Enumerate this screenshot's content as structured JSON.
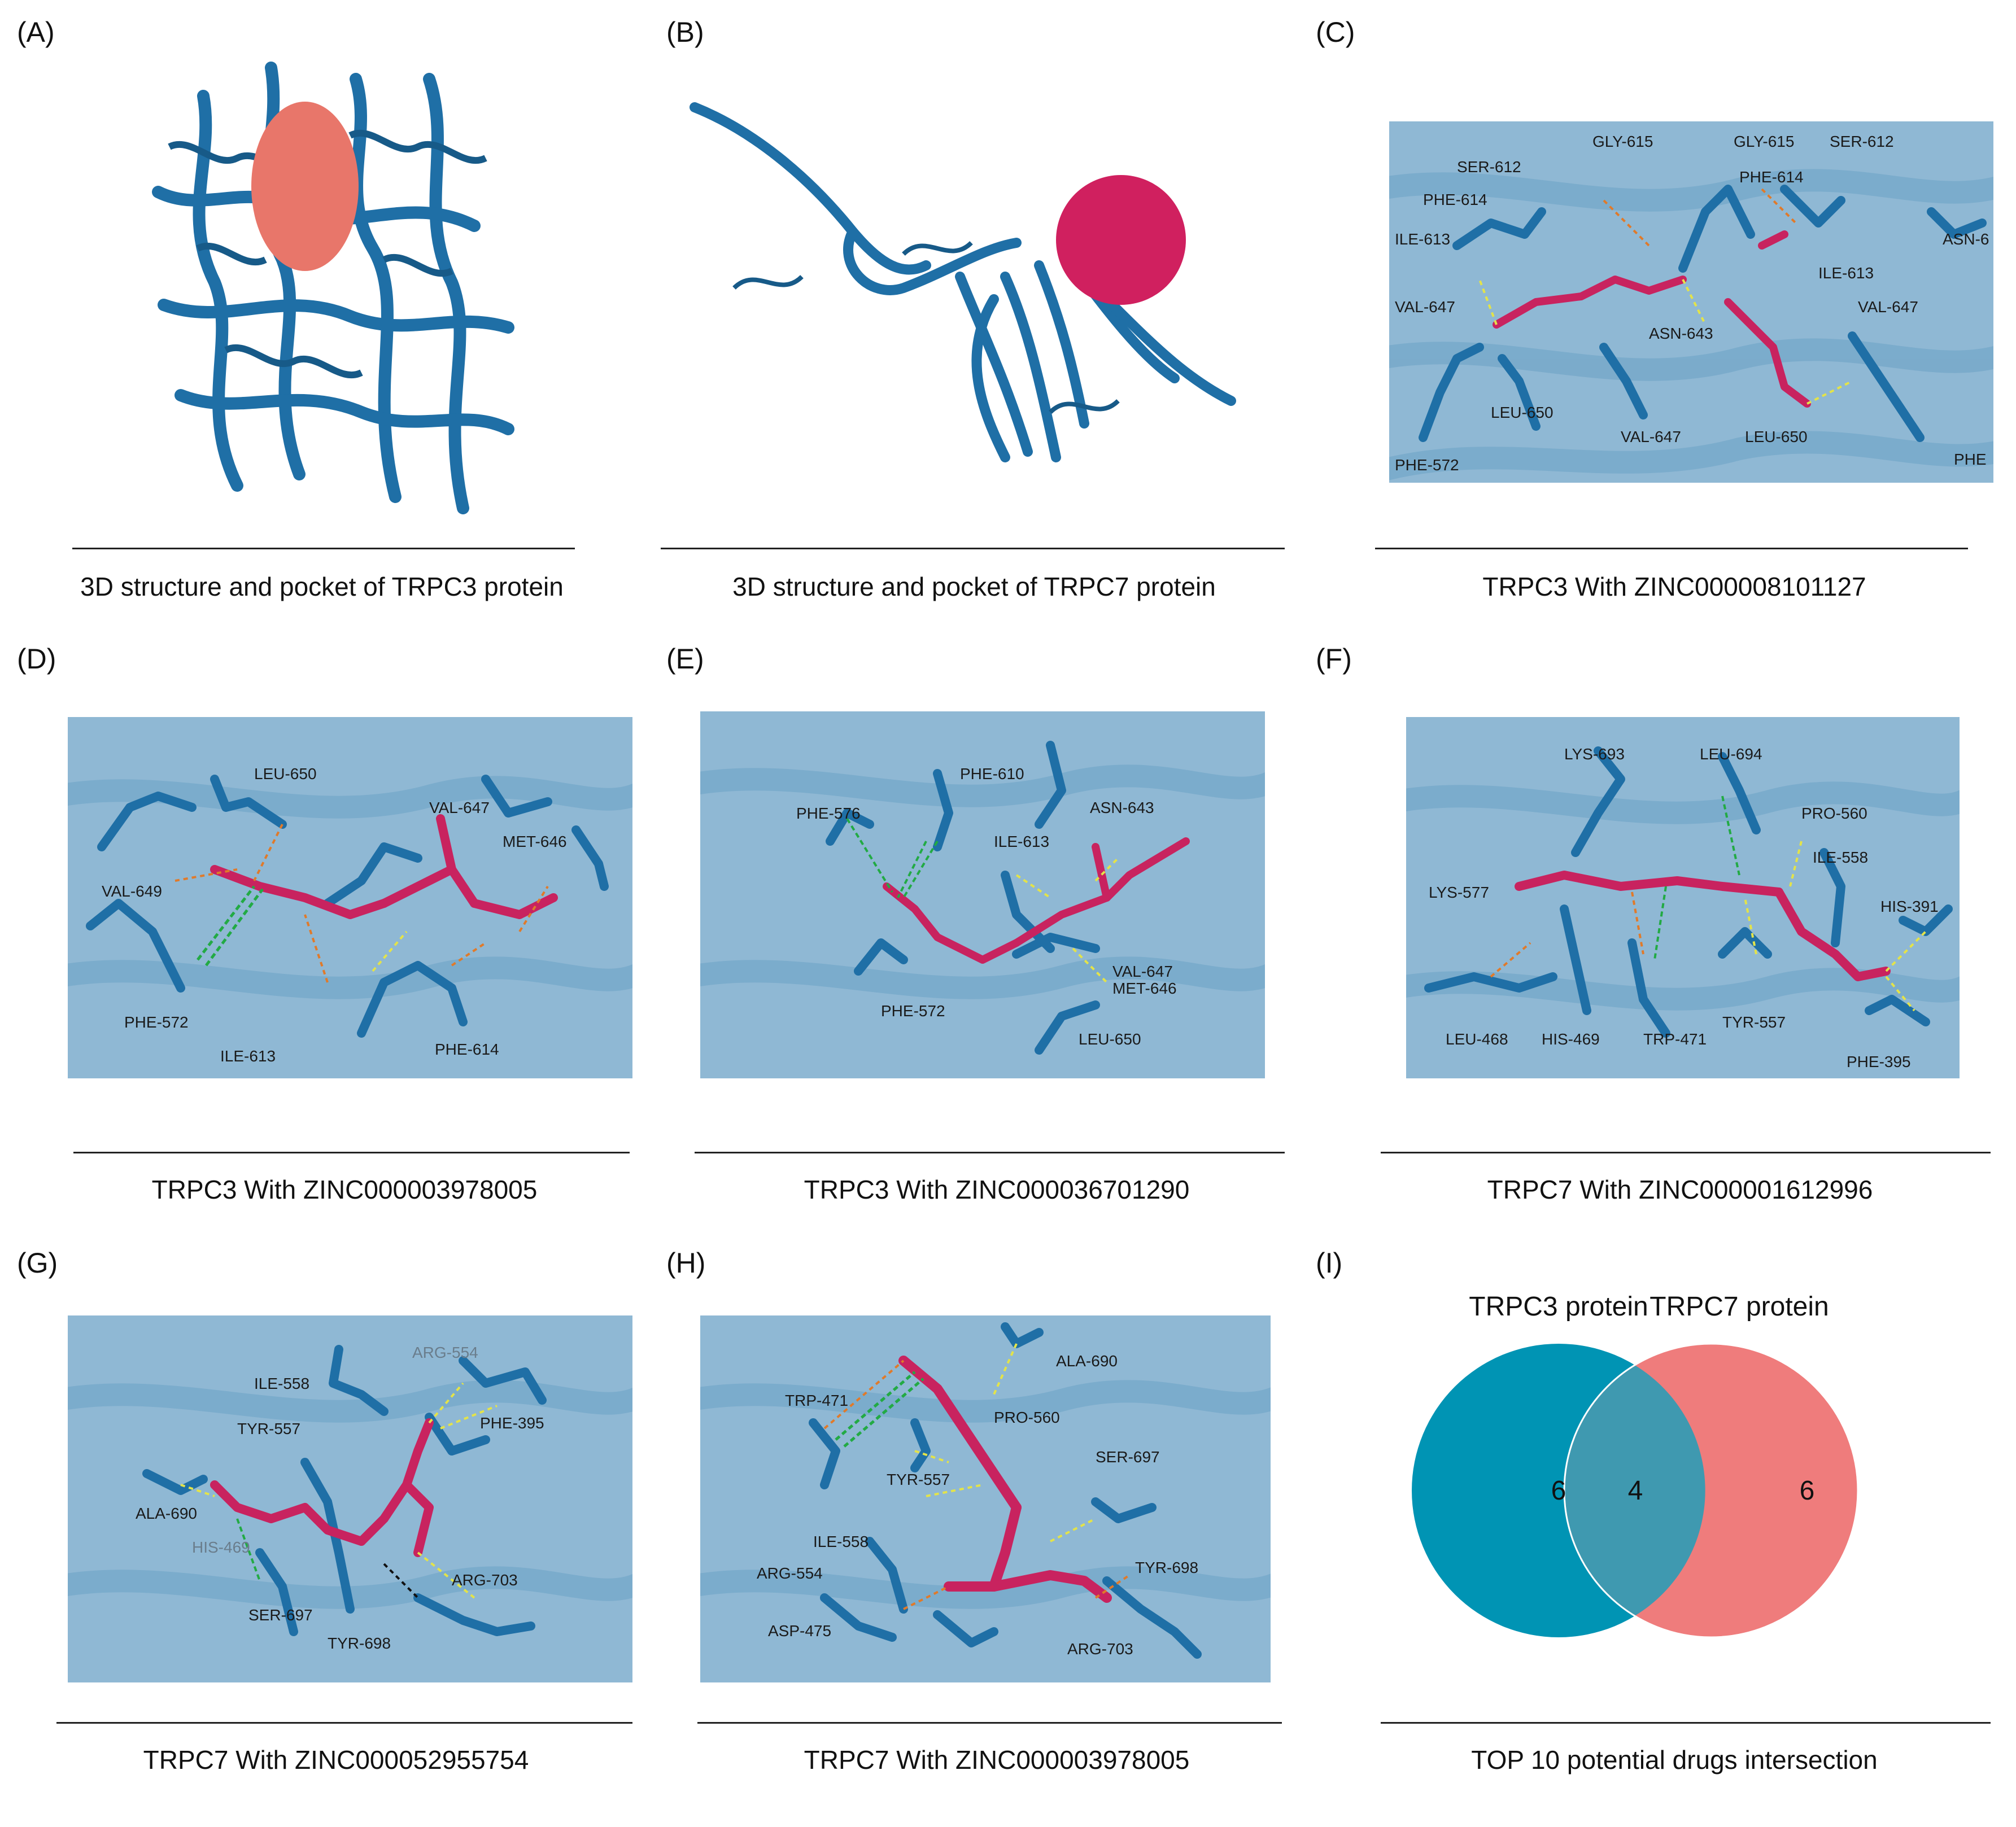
{
  "colors": {
    "protein_blue": "#1f6fa6",
    "ligand_magenta": "#c8235f",
    "pocket_salmon": "#e8766a",
    "pocket_crimson": "#d0205f",
    "venn_teal": "#0094b4",
    "venn_salmon": "#ef7c7c",
    "venn_overlap": "#3f99b0"
  },
  "panels": [
    {
      "label": "(A)",
      "caption": "3D structure and pocket of TRPC3 protein",
      "residues": []
    },
    {
      "label": "(B)",
      "caption": "3D structure and pocket of TRPC7 protein",
      "residues": []
    },
    {
      "label": "(C)",
      "caption": "TRPC3 With ZINC000008101127",
      "residues": [
        "GLY-615",
        "SER-612",
        "PHE-614",
        "ILE-613",
        "VAL-647",
        "ASN-643",
        "LEU-650",
        "PHE-572",
        "VAL-647",
        "LEU-650",
        "GLY-615",
        "SER-612",
        "PHE-614",
        "ASN-6",
        "ILE-613",
        "VAL-647",
        "PHE"
      ]
    },
    {
      "label": "(D)",
      "caption": "TRPC3 With ZINC000003978005",
      "residues": [
        "LEU-650",
        "VAL-647",
        "VAL-649",
        "MET-646",
        "PHE-572",
        "ILE-613",
        "PHE-614"
      ]
    },
    {
      "label": "(E)",
      "caption": "TRPC3 With ZINC000036701290",
      "residues": [
        "PHE-576",
        "PHE-610",
        "ASN-643",
        "ILE-613",
        "VAL-647",
        "MET-646",
        "PHE-572",
        "LEU-650"
      ]
    },
    {
      "label": "(F)",
      "caption": "TRPC7 With ZINC000001612996",
      "residues": [
        "LYS-693",
        "LEU-694",
        "PRO-560",
        "ILE-558",
        "LYS-577",
        "HIS-391",
        "LEU-468",
        "HIS-469",
        "TRP-471",
        "TYR-557",
        "PHE-395"
      ]
    },
    {
      "label": "(G)",
      "caption": "TRPC7 With ZINC000052955754",
      "residues": [
        "ARG-554",
        "ILE-558",
        "PHE-395",
        "TYR-557",
        "ALA-690",
        "HIS-469",
        "ARG-703",
        "SER-697",
        "TYR-698"
      ]
    },
    {
      "label": "(H)",
      "caption": "TRPC7 With ZINC000003978005",
      "residues": [
        "ALA-690",
        "TRP-471",
        "PRO-560",
        "SER-697",
        "TYR-557",
        "ILE-558",
        "ARG-554",
        "TYR-698",
        "ASP-475",
        "ARG-703"
      ]
    },
    {
      "label": "(I)",
      "caption": "TOP 10 potential drugs intersection",
      "residues": []
    }
  ],
  "venn": {
    "left_label": "TRPC3 protein",
    "right_label": "TRPC7 protein",
    "left_only": "6",
    "overlap": "4",
    "right_only": "6"
  }
}
